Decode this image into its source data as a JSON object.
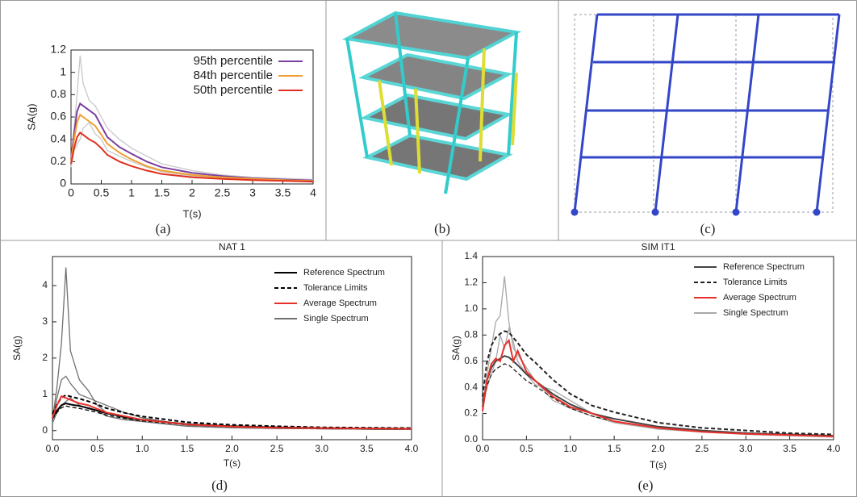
{
  "captions": [
    "(a)",
    "(b)",
    "(c)",
    "(d)",
    "(e)"
  ],
  "chart_data": [
    {
      "type": "line",
      "xlabel": "T(s)",
      "ylabel": "SA(g)",
      "x": [
        0,
        0.05,
        0.1,
        0.15,
        0.2,
        0.3,
        0.4,
        0.5,
        0.6,
        0.8,
        1,
        1.25,
        1.5,
        2,
        2.5,
        3,
        3.5,
        4
      ],
      "xlim": [
        0,
        4
      ],
      "xticks": [
        0,
        0.5,
        1,
        1.5,
        2,
        2.5,
        3,
        3.5,
        4
      ],
      "ylim": [
        0,
        1.2
      ],
      "yticks": [
        0,
        0.2,
        0.4,
        0.6,
        0.8,
        1,
        1.2
      ],
      "series": [
        {
          "color": "#c8c8c8",
          "values": [
            0.2,
            0.5,
            0.8,
            1.15,
            0.9,
            0.75,
            0.7,
            0.6,
            0.5,
            0.4,
            0.32,
            0.25,
            0.18,
            0.12,
            0.08,
            0.06,
            0.05,
            0.04
          ]
        },
        {
          "color": "#c8c8c8",
          "values": [
            0.15,
            0.3,
            0.35,
            0.4,
            0.5,
            0.55,
            0.45,
            0.4,
            0.3,
            0.25,
            0.2,
            0.15,
            0.11,
            0.07,
            0.05,
            0.04,
            0.03,
            0.02
          ]
        },
        {
          "name": "95th percentile",
          "color": "#7b3fa0",
          "values": [
            0.22,
            0.45,
            0.65,
            0.72,
            0.7,
            0.66,
            0.62,
            0.52,
            0.42,
            0.33,
            0.27,
            0.2,
            0.15,
            0.1,
            0.07,
            0.05,
            0.04,
            0.03
          ]
        },
        {
          "name": "84th percentile",
          "color": "#f0a030",
          "values": [
            0.2,
            0.4,
            0.55,
            0.62,
            0.6,
            0.56,
            0.52,
            0.44,
            0.36,
            0.28,
            0.22,
            0.16,
            0.12,
            0.08,
            0.06,
            0.045,
            0.035,
            0.025
          ]
        },
        {
          "name": "50th percentile",
          "color": "#e03020",
          "values": [
            0.18,
            0.32,
            0.42,
            0.46,
            0.44,
            0.4,
            0.37,
            0.32,
            0.26,
            0.2,
            0.16,
            0.12,
            0.09,
            0.06,
            0.045,
            0.035,
            0.028,
            0.02
          ]
        }
      ]
    },
    {
      "type": "line",
      "title": "NAT 1",
      "xlabel": "T(s)",
      "ylabel": "SA(g)",
      "x": [
        0,
        0.05,
        0.1,
        0.15,
        0.2,
        0.3,
        0.4,
        0.5,
        0.6,
        0.8,
        1,
        1.5,
        2,
        2.5,
        3,
        3.5,
        4
      ],
      "xlim": [
        0,
        4
      ],
      "xticks": [
        {
          "value": 0,
          "label": "0.0"
        },
        {
          "value": 0.5,
          "label": "0.5"
        },
        {
          "value": 1,
          "label": "1.0"
        },
        {
          "value": 1.5,
          "label": "1.5"
        },
        {
          "value": 2,
          "label": "2.0"
        },
        {
          "value": 2.5,
          "label": "2.5"
        },
        {
          "value": 3,
          "label": "3.0"
        },
        {
          "value": 3.5,
          "label": "3.5"
        },
        {
          "value": 4,
          "label": "4.0"
        }
      ],
      "ylim": [
        -0.25,
        4.8
      ],
      "yticks": [
        0,
        1,
        2,
        3,
        4
      ],
      "series": [
        {
          "name": "Single Spectrum",
          "color": "#707070",
          "values": [
            0.3,
            1.2,
            2.4,
            4.5,
            2.2,
            1.4,
            1.1,
            0.7,
            0.5,
            0.35,
            0.25,
            0.12,
            0.08,
            0.06,
            0.05,
            0.04,
            0.03
          ]
        },
        {
          "color": "#707070",
          "values": [
            0.3,
            0.9,
            1.4,
            1.5,
            1.3,
            1.0,
            0.9,
            0.8,
            0.7,
            0.5,
            0.35,
            0.15,
            0.1,
            0.07,
            0.05,
            0.04,
            0.03
          ]
        },
        {
          "color": "#707070",
          "values": [
            0.2,
            0.5,
            0.7,
            0.8,
            0.9,
            0.7,
            0.6,
            0.55,
            0.4,
            0.3,
            0.25,
            0.12,
            0.08,
            0.06,
            0.05,
            0.04,
            0.03
          ]
        },
        {
          "name": "Reference Spectrum",
          "color": "#000000",
          "values": [
            0.35,
            0.55,
            0.7,
            0.75,
            0.72,
            0.68,
            0.62,
            0.55,
            0.48,
            0.38,
            0.3,
            0.18,
            0.12,
            0.09,
            0.07,
            0.06,
            0.05
          ]
        },
        {
          "name": "Tolerance Limits",
          "color": "#000000",
          "dash": true,
          "values": [
            0.46,
            0.72,
            0.91,
            0.98,
            0.94,
            0.88,
            0.81,
            0.72,
            0.62,
            0.49,
            0.39,
            0.23,
            0.16,
            0.12,
            0.09,
            0.08,
            0.07
          ]
        },
        {
          "color": "#000000",
          "dash": true,
          "values": [
            0.32,
            0.5,
            0.63,
            0.68,
            0.65,
            0.61,
            0.56,
            0.5,
            0.43,
            0.34,
            0.27,
            0.16,
            0.11,
            0.08,
            0.06,
            0.05,
            0.05
          ]
        },
        {
          "name": "Average Spectrum",
          "color": "#e8302a",
          "values": [
            0.35,
            0.7,
            0.95,
            0.9,
            0.85,
            0.75,
            0.7,
            0.6,
            0.5,
            0.4,
            0.3,
            0.17,
            0.11,
            0.08,
            0.07,
            0.06,
            0.05
          ]
        }
      ],
      "legend_order": [
        3,
        4,
        6,
        0
      ]
    },
    {
      "type": "line",
      "title": "SIM IT1",
      "xlabel": "T(s)",
      "ylabel": "SA(g)",
      "x": [
        0,
        0.05,
        0.1,
        0.15,
        0.2,
        0.25,
        0.3,
        0.35,
        0.4,
        0.5,
        0.6,
        0.8,
        1,
        1.25,
        1.5,
        2,
        2.5,
        3,
        3.5,
        4
      ],
      "xlim": [
        0,
        4
      ],
      "xticks": [
        {
          "value": 0,
          "label": "0.0"
        },
        {
          "value": 0.5,
          "label": "0.5"
        },
        {
          "value": 1,
          "label": "1.0"
        },
        {
          "value": 1.5,
          "label": "1.5"
        },
        {
          "value": 2,
          "label": "2.0"
        },
        {
          "value": 2.5,
          "label": "2.5"
        },
        {
          "value": 3,
          "label": "3.0"
        },
        {
          "value": 3.5,
          "label": "3.5"
        },
        {
          "value": 4,
          "label": "4.0"
        }
      ],
      "ylim": [
        0,
        1.4
      ],
      "yticks": [
        {
          "value": 0,
          "label": "0.0"
        },
        {
          "value": 0.2,
          "label": "0.2"
        },
        {
          "value": 0.4,
          "label": "0.4"
        },
        {
          "value": 0.6,
          "label": "0.6"
        },
        {
          "value": 0.8,
          "label": "0.8"
        },
        {
          "value": 1,
          "label": "1.0"
        },
        {
          "value": 1.2,
          "label": "1.2"
        },
        {
          "value": 1.4,
          "label": "1.4"
        }
      ],
      "series": [
        {
          "name": "Single Spectrum",
          "color": "#a8a8a8",
          "values": [
            0.2,
            0.5,
            0.7,
            0.9,
            0.95,
            1.25,
            0.9,
            0.7,
            0.65,
            0.55,
            0.45,
            0.3,
            0.24,
            0.18,
            0.13,
            0.08,
            0.06,
            0.04,
            0.03,
            0.02
          ]
        },
        {
          "color": "#a8a8a8",
          "values": [
            0.25,
            0.4,
            0.5,
            0.6,
            0.8,
            0.7,
            0.85,
            0.75,
            0.6,
            0.5,
            0.42,
            0.38,
            0.3,
            0.2,
            0.16,
            0.1,
            0.07,
            0.05,
            0.04,
            0.03
          ]
        },
        {
          "name": "Reference Spectrum",
          "color": "#444444",
          "values": [
            0.25,
            0.45,
            0.55,
            0.6,
            0.62,
            0.64,
            0.63,
            0.6,
            0.57,
            0.5,
            0.45,
            0.35,
            0.27,
            0.2,
            0.16,
            0.1,
            0.07,
            0.05,
            0.04,
            0.03
          ]
        },
        {
          "name": "Tolerance Limits",
          "color": "#222222",
          "dash": true,
          "values": [
            0.33,
            0.59,
            0.72,
            0.78,
            0.81,
            0.83,
            0.82,
            0.78,
            0.74,
            0.65,
            0.59,
            0.46,
            0.35,
            0.26,
            0.21,
            0.13,
            0.09,
            0.07,
            0.05,
            0.04
          ]
        },
        {
          "color": "#222222",
          "dash": true,
          "values": [
            0.23,
            0.41,
            0.5,
            0.54,
            0.56,
            0.58,
            0.57,
            0.54,
            0.51,
            0.45,
            0.41,
            0.32,
            0.24,
            0.18,
            0.14,
            0.09,
            0.06,
            0.05,
            0.04,
            0.03
          ]
        },
        {
          "name": "Average Spectrum",
          "color": "#e8302a",
          "values": [
            0.22,
            0.45,
            0.58,
            0.62,
            0.6,
            0.72,
            0.76,
            0.6,
            0.68,
            0.52,
            0.45,
            0.33,
            0.25,
            0.2,
            0.14,
            0.09,
            0.06,
            0.045,
            0.035,
            0.025
          ]
        }
      ],
      "legend_order": [
        2,
        3,
        5,
        0
      ]
    }
  ]
}
